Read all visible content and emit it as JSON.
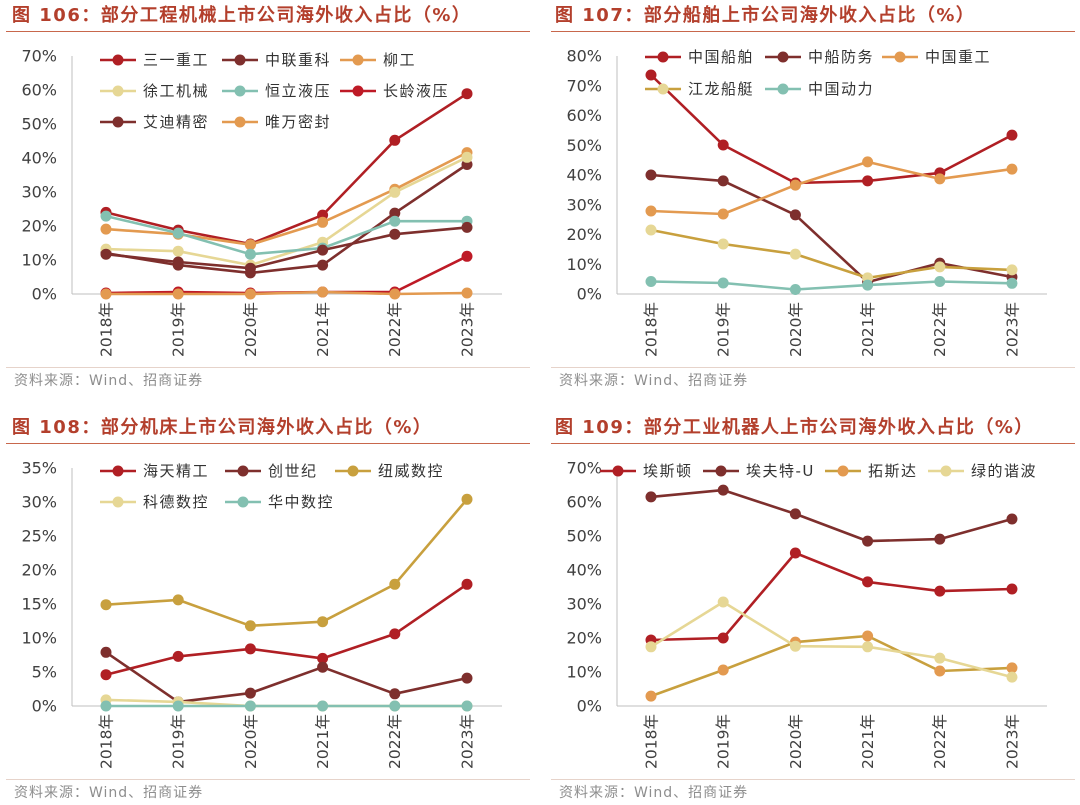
{
  "chart_data": [
    {
      "type": "line",
      "title": "图 106：部分工程机械上市公司海外收入占比（%）",
      "source": "资料来源：Wind、招商证券",
      "categories": [
        "2018年",
        "2019年",
        "2020年",
        "2021年",
        "2022年",
        "2023年"
      ],
      "ylim": [
        0,
        70
      ],
      "yticks": [
        0,
        10,
        20,
        30,
        40,
        50,
        60,
        70
      ],
      "ytick_suffix": "%",
      "grid": false,
      "legend_position": "top-left",
      "series": [
        {
          "name": "三一重工",
          "color": "#B01F24",
          "values": [
            24.0,
            18.8,
            14.7,
            23.2,
            45.2,
            58.9
          ]
        },
        {
          "name": "中联重科",
          "color": "#7E2F2D",
          "values": [
            12.0,
            8.5,
            6.2,
            8.5,
            23.8,
            38.1
          ]
        },
        {
          "name": "柳工",
          "color": "#E39A50",
          "values": [
            19.1,
            17.6,
            14.5,
            21.1,
            30.8,
            41.6
          ]
        },
        {
          "name": "徐工机械",
          "color": "#E6D795",
          "values": [
            13.2,
            12.6,
            8.5,
            15.2,
            29.9,
            40.2
          ]
        },
        {
          "name": "恒立液压",
          "color": "#83C0B1",
          "values": [
            22.9,
            17.9,
            11.7,
            13.5,
            21.4,
            21.4
          ]
        },
        {
          "name": "长龄液压",
          "color": "#BE1A26",
          "values": [
            0.3,
            0.6,
            0.3,
            0.6,
            0.6,
            11.1
          ]
        },
        {
          "name": "艾迪精密",
          "color": "#7E2F2D",
          "values": [
            11.7,
            9.4,
            7.6,
            12.9,
            17.6,
            19.6
          ]
        },
        {
          "name": "唯万密封",
          "color": "#E39A50",
          "values": [
            0.0,
            0.0,
            0.0,
            0.6,
            0.0,
            0.3
          ]
        }
      ]
    },
    {
      "type": "line",
      "title": "图 107：部分船舶上市公司海外收入占比（%）",
      "source": "资料来源：Wind、招商证券",
      "categories": [
        "2018年",
        "2019年",
        "2020年",
        "2021年",
        "2022年",
        "2023年"
      ],
      "ylim": [
        0,
        80
      ],
      "yticks": [
        0,
        10,
        20,
        30,
        40,
        50,
        60,
        70,
        80
      ],
      "ytick_suffix": "%",
      "grid": false,
      "legend_position": "top-left",
      "series": [
        {
          "name": "中国船舶",
          "color": "#B01F24",
          "values": [
            73.6,
            50.1,
            37.3,
            38.0,
            40.7,
            53.4
          ]
        },
        {
          "name": "中船防务",
          "color": "#7E2F2D",
          "values": [
            40.0,
            38.0,
            26.6,
            4.0,
            10.4,
            5.7
          ]
        },
        {
          "name": "中国重工",
          "color": "#E39A50",
          "values": [
            27.9,
            26.9,
            36.6,
            44.4,
            38.7,
            42.0
          ]
        },
        {
          "name": "江龙船艇",
          "color": "#C8A03E",
          "marker_color": "#E6D795",
          "values": [
            21.5,
            16.8,
            13.4,
            5.4,
            9.1,
            8.1
          ]
        },
        {
          "name": "中国动力",
          "color": "#83C0B1",
          "values": [
            4.2,
            3.7,
            1.5,
            3.0,
            4.2,
            3.6
          ]
        }
      ]
    },
    {
      "type": "line",
      "title": "图 108：部分机床上市公司海外收入占比（%）",
      "source": "资料来源：Wind、招商证券",
      "categories": [
        "2018年",
        "2019年",
        "2020年",
        "2021年",
        "2022年",
        "2023年"
      ],
      "ylim": [
        0,
        35
      ],
      "yticks": [
        0,
        5,
        10,
        15,
        20,
        25,
        30,
        35
      ],
      "ytick_suffix": "%",
      "grid": false,
      "legend_position": "top-left",
      "series": [
        {
          "name": "海天精工",
          "color": "#B01F24",
          "values": [
            4.6,
            7.3,
            8.4,
            7.0,
            10.6,
            17.9
          ]
        },
        {
          "name": "创世纪",
          "color": "#7E2F2D",
          "values": [
            7.9,
            0.6,
            1.9,
            5.7,
            1.8,
            4.1
          ]
        },
        {
          "name": "纽威数控",
          "color": "#C8A03E",
          "values": [
            14.9,
            15.6,
            11.8,
            12.4,
            17.9,
            30.4
          ]
        },
        {
          "name": "科德数控",
          "color": "#E6D795",
          "values": [
            0.9,
            0.6,
            0.0,
            0.0,
            0.0,
            0.0
          ]
        },
        {
          "name": "华中数控",
          "color": "#83C0B1",
          "values": [
            0.0,
            0.0,
            0.0,
            0.0,
            0.0,
            0.0
          ]
        }
      ]
    },
    {
      "type": "line",
      "title": "图 109：部分工业机器人上市公司海外收入占比（%）",
      "source": "资料来源：Wind、招商证券",
      "categories": [
        "2018年",
        "2019年",
        "2020年",
        "2021年",
        "2022年",
        "2023年"
      ],
      "ylim": [
        0,
        70
      ],
      "yticks": [
        0,
        10,
        20,
        30,
        40,
        50,
        60,
        70
      ],
      "ytick_suffix": "%",
      "grid": false,
      "legend_position": "top",
      "series": [
        {
          "name": "埃斯顿",
          "color": "#B01F24",
          "values": [
            19.4,
            20.0,
            45.0,
            36.5,
            33.8,
            34.4
          ]
        },
        {
          "name": "埃夫特-U",
          "color": "#7E2F2D",
          "values": [
            61.5,
            63.5,
            56.5,
            48.5,
            49.1,
            55.0
          ]
        },
        {
          "name": "拓斯达",
          "color": "#C8A03E",
          "marker_color": "#E39A50",
          "values": [
            2.9,
            10.6,
            18.8,
            20.6,
            10.3,
            11.2
          ]
        },
        {
          "name": "绿的谐波",
          "color": "#E6D795",
          "values": [
            17.4,
            30.6,
            17.6,
            17.4,
            14.1,
            8.5
          ]
        }
      ]
    }
  ]
}
